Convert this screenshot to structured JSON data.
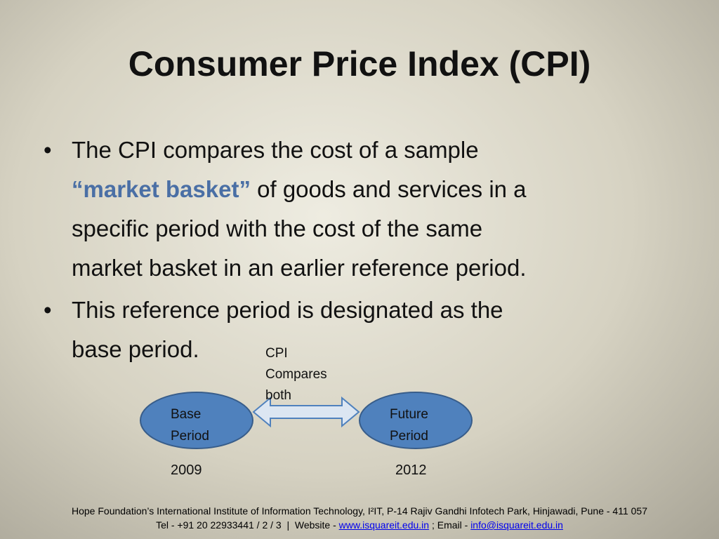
{
  "title": "Consumer Price Index (CPI)",
  "bullets": [
    {
      "segments": [
        "The CPI compares the cost of a sample",
        "“market basket”",
        " of goods and services in a",
        "specific period with the cost of the same",
        "market basket in an earlier reference period."
      ]
    },
    {
      "segments": [
        "This reference period is designated as the",
        "base period."
      ]
    }
  ],
  "diagram": {
    "arrow_label": [
      "CPI",
      "Compares",
      "both"
    ],
    "nodes": [
      {
        "label": [
          "Base",
          "Period"
        ],
        "year": "2009"
      },
      {
        "label": [
          "Future",
          "Period"
        ],
        "year": "2012"
      }
    ]
  },
  "footer": {
    "line1": "Hope Foundation’s International Institute of Information Technology, I²IT, P-14 Rajiv Gandhi Infotech Park, Hinjawadi, Pune - 411 057",
    "line2": [
      "Tel - +91 20 22933441 / 2 / 3  |  Website - ",
      "www.isquareit.edu.in",
      " ; Email - ",
      "info@isquareit.edu.in"
    ]
  }
}
